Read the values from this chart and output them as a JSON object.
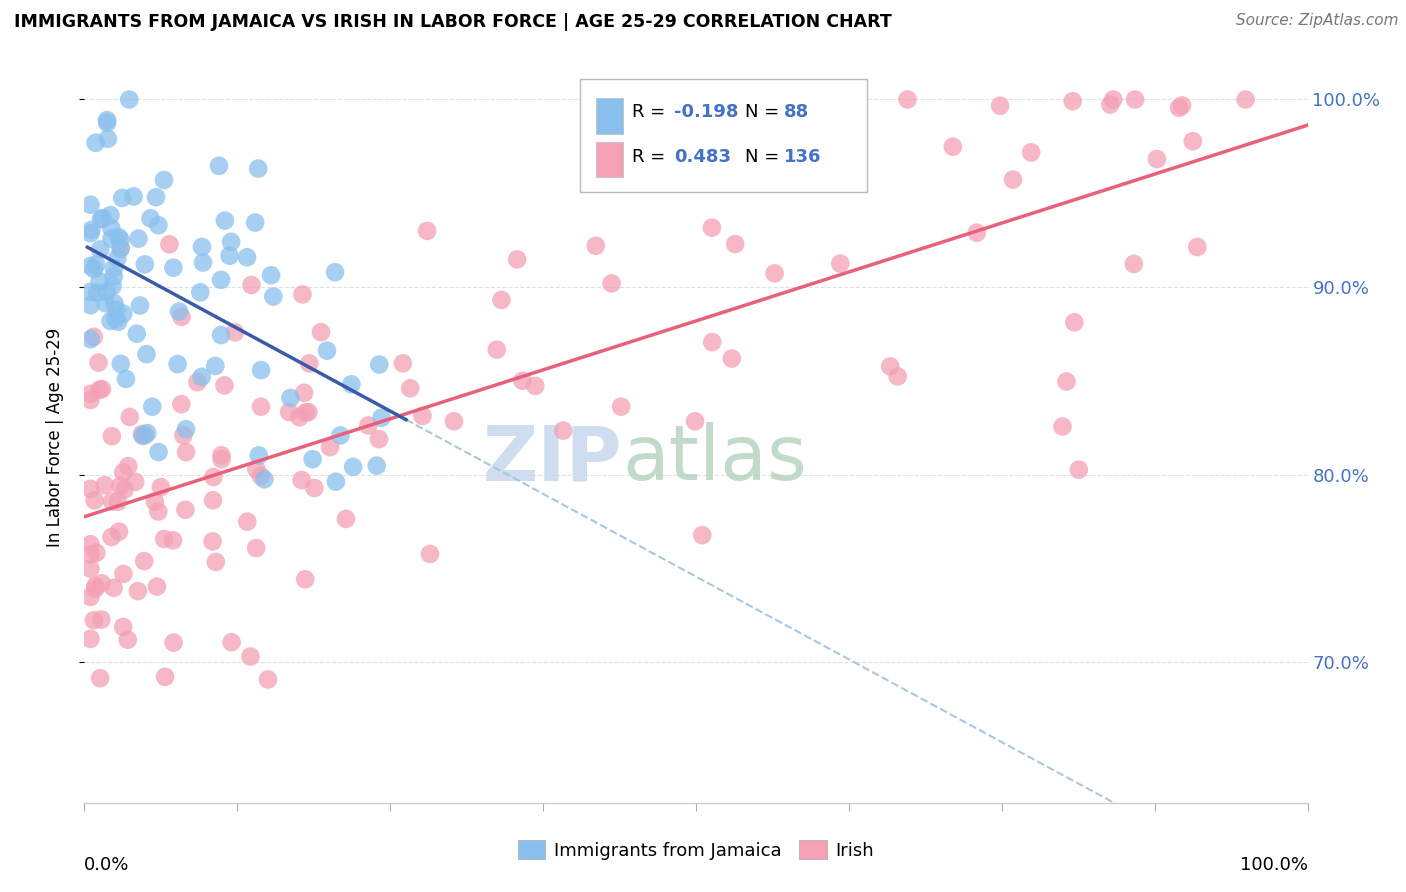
{
  "title": "IMMIGRANTS FROM JAMAICA VS IRISH IN LABOR FORCE | AGE 25-29 CORRELATION CHART",
  "source": "Source: ZipAtlas.com",
  "ylabel": "In Labor Force | Age 25-29",
  "color_jamaica": "#89BFED",
  "color_irish": "#F4A0B5",
  "color_jamaica_line": "#3A5CA8",
  "color_irish_line": "#E8607A",
  "color_dashed": "#A8C8E0",
  "background_color": "#FFFFFF",
  "grid_color": "#E0E0E0",
  "xlim": [
    0.0,
    1.0
  ],
  "ylim": [
    0.625,
    1.015
  ],
  "ytick_values": [
    0.7,
    0.8,
    0.9,
    1.0
  ],
  "ytick_labels": [
    "70.0%",
    "80.0%",
    "90.0%",
    "100.0%"
  ],
  "legend_jamaica_R": "-0.198",
  "legend_jamaica_N": "88",
  "legend_irish_R": "0.483",
  "legend_irish_N": "136",
  "label_color": "#4472C4",
  "watermark_zip_color": "#C8D8EE",
  "watermark_atlas_color": "#B8D4C0"
}
